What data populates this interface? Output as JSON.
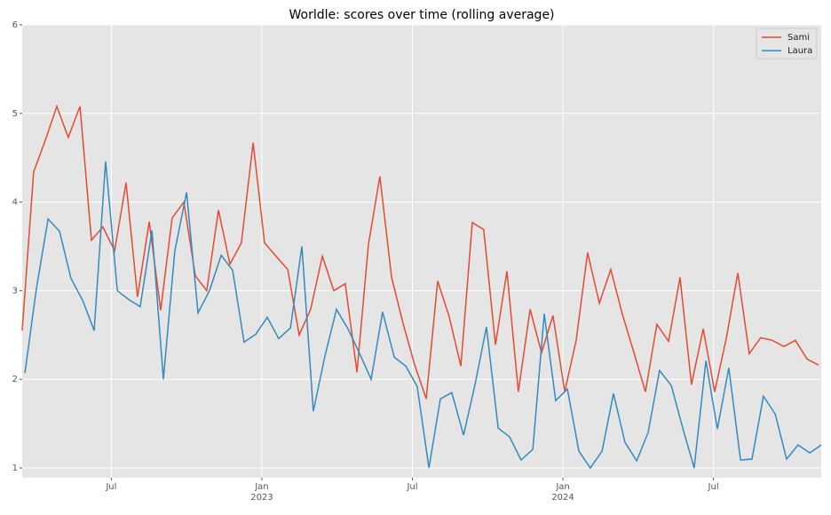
{
  "chart_data": {
    "type": "line",
    "title": "Worldle: scores over time (rolling average)",
    "xlim": [
      2022.204,
      2024.858
    ],
    "ylim": [
      0.89,
      6
    ],
    "xticks": [
      {
        "value": 2022.5,
        "label": "Jul"
      },
      {
        "value": 2023,
        "label": [
          "Jan",
          "2023"
        ]
      },
      {
        "value": 2023.5,
        "label": "Jul"
      },
      {
        "value": 2024,
        "label": [
          "Jan",
          "2024"
        ]
      },
      {
        "value": 2024.5,
        "label": "Jul"
      }
    ],
    "yticks": [
      1,
      2,
      3,
      4,
      5,
      6
    ],
    "grid": true,
    "legend": "upper-right",
    "series": [
      {
        "name": "Sami",
        "color": "#E24A33",
        "x": [
          2022.204,
          2022.242,
          2022.281,
          2022.319,
          2022.357,
          2022.396,
          2022.434,
          2022.472,
          2022.511,
          2022.549,
          2022.587,
          2022.626,
          2022.664,
          2022.702,
          2022.741,
          2022.779,
          2022.817,
          2022.856,
          2022.894,
          2022.932,
          2022.971,
          2023.009,
          2023.047,
          2023.086,
          2023.124,
          2023.162,
          2023.201,
          2023.239,
          2023.277,
          2023.316,
          2023.354,
          2023.392,
          2023.431,
          2023.469,
          2023.507,
          2023.546,
          2023.584,
          2023.622,
          2023.661,
          2023.699,
          2023.737,
          2023.776,
          2023.814,
          2023.852,
          2023.891,
          2023.929,
          2023.967,
          2024.006,
          2024.044,
          2024.082,
          2024.121,
          2024.159,
          2024.197,
          2024.236,
          2024.274,
          2024.312,
          2024.351,
          2024.389,
          2024.427,
          2024.466,
          2024.504,
          2024.542,
          2024.581,
          2024.619,
          2024.657,
          2024.696,
          2024.734,
          2024.772,
          2024.811,
          2024.849
        ],
        "values": [
          2.55,
          4.34,
          4.7,
          5.08,
          4.73,
          5.08,
          3.57,
          3.72,
          3.45,
          4.22,
          2.93,
          3.78,
          2.78,
          3.82,
          4.0,
          3.17,
          3.0,
          3.91,
          3.3,
          3.54,
          4.67,
          3.54,
          3.39,
          3.24,
          2.5,
          2.79,
          3.39,
          3.0,
          3.08,
          2.08,
          3.52,
          4.29,
          3.15,
          2.63,
          2.17,
          1.78,
          3.11,
          2.71,
          2.15,
          3.77,
          3.69,
          2.39,
          3.22,
          1.86,
          2.79,
          2.3,
          2.72,
          1.86,
          2.44,
          3.43,
          2.86,
          3.24,
          2.74,
          2.3,
          1.86,
          2.62,
          2.43,
          3.15,
          1.94,
          2.57,
          1.86,
          2.45,
          3.2,
          2.29,
          2.47,
          2.44,
          2.37,
          2.44,
          2.23,
          2.16
        ]
      },
      {
        "name": "Laura",
        "color": "#348ABD",
        "x": [
          2022.213,
          2022.251,
          2022.29,
          2022.328,
          2022.366,
          2022.405,
          2022.443,
          2022.481,
          2022.52,
          2022.558,
          2022.596,
          2022.635,
          2022.673,
          2022.711,
          2022.75,
          2022.788,
          2022.826,
          2022.865,
          2022.903,
          2022.941,
          2022.98,
          2023.018,
          2023.056,
          2023.095,
          2023.133,
          2023.171,
          2023.21,
          2023.248,
          2023.286,
          2023.325,
          2023.363,
          2023.401,
          2023.44,
          2023.478,
          2023.516,
          2023.555,
          2023.593,
          2023.631,
          2023.67,
          2023.708,
          2023.746,
          2023.785,
          2023.823,
          2023.861,
          2023.9,
          2023.938,
          2023.976,
          2024.015,
          2024.053,
          2024.091,
          2024.13,
          2024.168,
          2024.206,
          2024.245,
          2024.283,
          2024.321,
          2024.36,
          2024.398,
          2024.436,
          2024.475,
          2024.513,
          2024.551,
          2024.59,
          2024.628,
          2024.666,
          2024.705,
          2024.743,
          2024.781,
          2024.82,
          2024.858
        ],
        "values": [
          2.07,
          3.02,
          3.81,
          3.67,
          3.14,
          2.89,
          2.55,
          4.46,
          3.0,
          2.9,
          2.82,
          3.68,
          2.0,
          3.45,
          4.11,
          2.75,
          3.0,
          3.4,
          3.23,
          2.42,
          2.51,
          2.7,
          2.46,
          2.58,
          3.5,
          1.64,
          2.27,
          2.79,
          2.57,
          2.29,
          2.0,
          2.76,
          2.25,
          2.15,
          1.92,
          1.0,
          1.78,
          1.85,
          1.37,
          1.94,
          2.59,
          1.45,
          1.35,
          1.09,
          1.21,
          2.74,
          1.76,
          1.89,
          1.19,
          1.0,
          1.19,
          1.84,
          1.29,
          1.08,
          1.4,
          2.1,
          1.93,
          1.45,
          1.0,
          2.21,
          1.44,
          2.13,
          1.09,
          1.1,
          1.81,
          1.61,
          1.1,
          1.26,
          1.17,
          1.26
        ]
      }
    ]
  }
}
